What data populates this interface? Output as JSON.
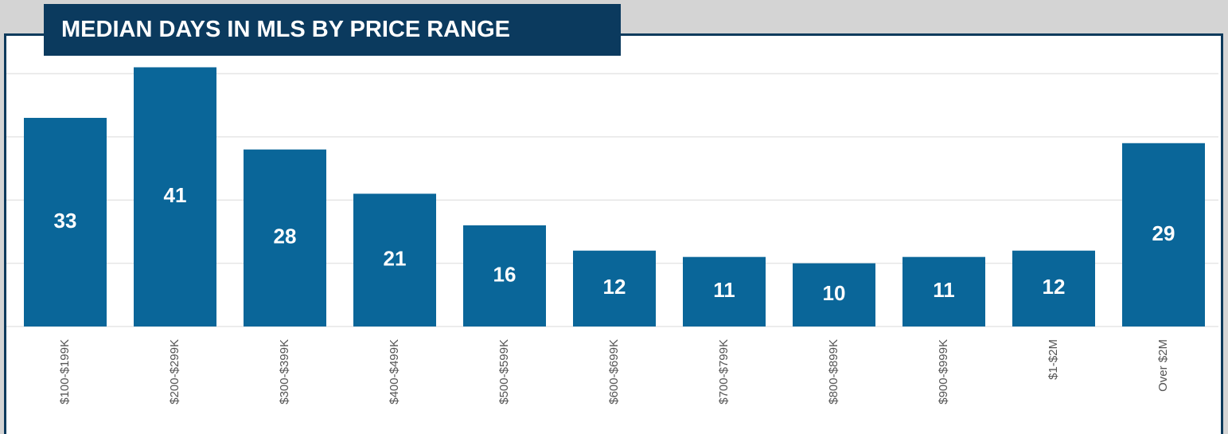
{
  "chart_data": {
    "type": "bar",
    "title": "MEDIAN DAYS IN MLS BY PRICE RANGE",
    "categories": [
      "$100-$199K",
      "$200-$299K",
      "$300-$399K",
      "$400-$499K",
      "$500-$599K",
      "$600-$699K",
      "$700-$799K",
      "$800-$899K",
      "$900-$999K",
      "$1-$2M",
      "Over $2M"
    ],
    "values": [
      33,
      41,
      28,
      21,
      16,
      12,
      11,
      10,
      11,
      12,
      29
    ],
    "color": "#0a6699",
    "ylim": [
      0,
      41
    ],
    "yticks": [
      0,
      10,
      20,
      30,
      40
    ],
    "grid": true
  }
}
